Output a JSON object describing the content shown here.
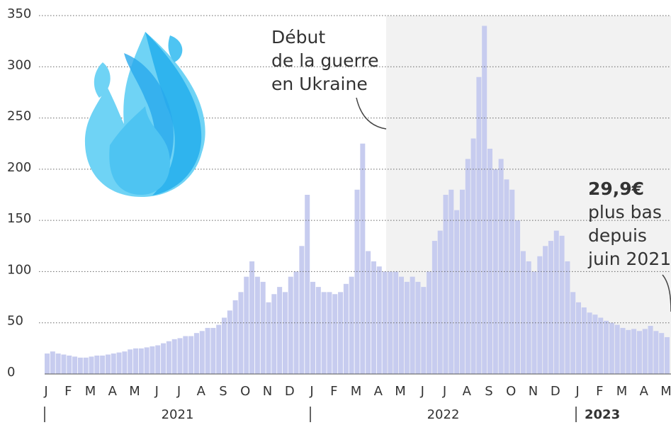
{
  "chart_data": {
    "type": "bar",
    "color": "#c7ccef",
    "ylim": [
      0,
      350
    ],
    "yticks": [
      0,
      50,
      100,
      150,
      200,
      250,
      300,
      350
    ],
    "grid": true,
    "categories": [
      "J",
      null,
      null,
      null,
      "F",
      null,
      null,
      null,
      "M",
      null,
      null,
      null,
      "A",
      null,
      null,
      null,
      "M",
      null,
      null,
      null,
      "J",
      null,
      null,
      null,
      "J",
      null,
      null,
      null,
      "A",
      null,
      null,
      null,
      "S",
      null,
      null,
      null,
      "O",
      null,
      null,
      null,
      "N",
      null,
      null,
      null,
      "D",
      null,
      null,
      null,
      "J",
      null,
      null,
      null,
      "F",
      null,
      null,
      null,
      "M",
      null,
      null,
      null,
      "A",
      null,
      null,
      null,
      "M",
      null,
      null,
      null,
      "J",
      null,
      null,
      null,
      "J",
      null,
      null,
      null,
      "A",
      null,
      null,
      null,
      "S",
      null,
      null,
      null,
      "O",
      null,
      null,
      null,
      "N",
      null,
      null,
      null,
      "D",
      null,
      null,
      null,
      "J",
      null,
      null,
      null,
      "F",
      null,
      null,
      null,
      "M",
      null,
      null,
      null,
      "A",
      null,
      null,
      null,
      "M"
    ],
    "values": [
      20,
      22,
      20,
      19,
      18,
      17,
      16,
      16,
      17,
      18,
      18,
      19,
      20,
      21,
      22,
      24,
      25,
      25,
      26,
      27,
      28,
      30,
      32,
      34,
      35,
      37,
      37,
      40,
      42,
      45,
      45,
      48,
      55,
      62,
      72,
      80,
      95,
      110,
      95,
      90,
      70,
      78,
      85,
      80,
      95,
      100,
      125,
      175,
      90,
      85,
      80,
      80,
      78,
      80,
      88,
      95,
      180,
      225,
      120,
      110,
      105,
      100,
      100,
      100,
      95,
      90,
      95,
      90,
      85,
      100,
      130,
      140,
      175,
      180,
      160,
      180,
      210,
      230,
      290,
      340,
      220,
      200,
      210,
      190,
      180,
      150,
      120,
      110,
      100,
      115,
      125,
      130,
      140,
      135,
      110,
      80,
      70,
      65,
      60,
      58,
      55,
      52,
      50,
      48,
      45,
      43,
      44,
      42,
      44,
      47,
      42,
      40,
      36
    ],
    "years": [
      "2021",
      "2022",
      "2023"
    ],
    "annotations": [
      {
        "lines": [
          "Début",
          "de la guerre",
          "en Ukraine"
        ]
      },
      {
        "label": "29,9€",
        "lines": [
          "plus bas",
          "depuis",
          "juin 2021"
        ]
      }
    ]
  }
}
